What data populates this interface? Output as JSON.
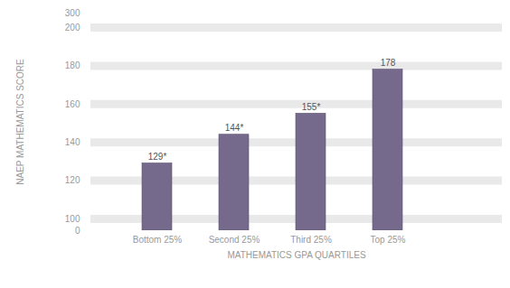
{
  "chart_data": {
    "type": "bar",
    "categories": [
      "Bottom 25%",
      "Second 25%",
      "Third 25%",
      "Top 25%"
    ],
    "values": [
      129,
      144,
      155,
      178
    ],
    "value_labels": [
      "129*",
      "144*",
      "155*",
      "178"
    ],
    "color": "#766a8c",
    "xlabel": "MATHEMATICS GPA QUARTILES",
    "ylabel": "NAEP MATHEMATICS SCORE",
    "ylim": [
      0,
      300
    ],
    "yticks": [
      0,
      100,
      120,
      140,
      160,
      180,
      200,
      300
    ],
    "grid": true,
    "data_labels": true
  }
}
